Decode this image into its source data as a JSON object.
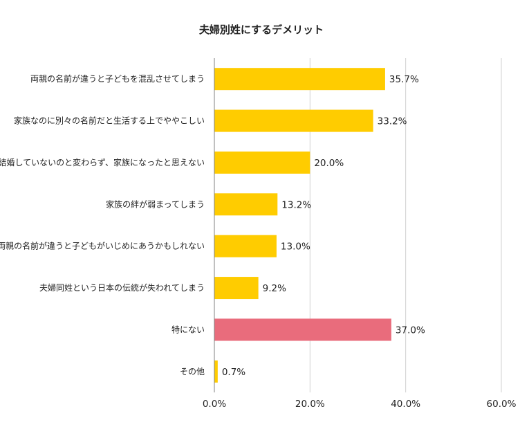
{
  "chart_data": {
    "type": "bar",
    "orientation": "horizontal",
    "title": "夫婦別姓にするデメリット",
    "xlabel": "",
    "ylabel": "",
    "xlim": [
      0,
      60
    ],
    "grid": true,
    "legend": "none",
    "x_ticks": [
      0,
      20,
      40,
      60
    ],
    "x_tick_labels": [
      "0.0%",
      "20.0%",
      "40.0%",
      "60.0%"
    ],
    "categories": [
      "両親の名前が違うと子どもを混乱させてしまう",
      "家族なのに別々の名前だと生活する上でややこしい",
      "結婚していないのと変わらず、家族になったと思えない",
      "家族の絆が弱まってしまう",
      "両親の名前が違うと子どもがいじめにあうかもしれない",
      "夫婦同姓という日本の伝統が失われてしまう",
      "特にない",
      "その他"
    ],
    "values": [
      35.7,
      33.2,
      20.0,
      13.2,
      13.0,
      9.2,
      37.0,
      0.7
    ],
    "value_labels": [
      "35.7%",
      "33.2%",
      "20.0%",
      "13.2%",
      "13.0%",
      "9.2%",
      "37.0%",
      "0.7%"
    ],
    "bar_colors": [
      "#FFCC00",
      "#FFCC00",
      "#FFCC00",
      "#FFCC00",
      "#FFCC00",
      "#FFCC00",
      "#E96C7C",
      "#FFCC00"
    ]
  }
}
